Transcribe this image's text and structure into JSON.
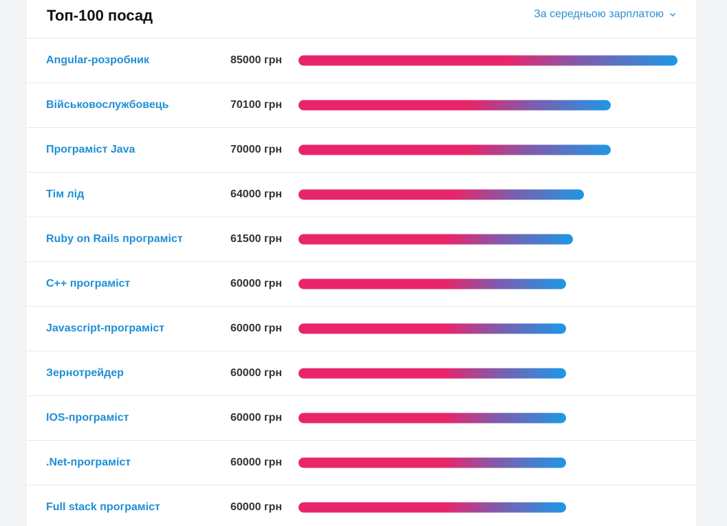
{
  "header": {
    "title": "Топ-100 посад",
    "sort_label": "За середньою зарплатою"
  },
  "max_salary": 85000,
  "rows": [
    {
      "job": "Angular-розробник",
      "salary": 85000,
      "salary_text": "85000 грн"
    },
    {
      "job": "Військовослужбовець",
      "salary": 70100,
      "salary_text": "70100 грн"
    },
    {
      "job": "Програміст Java",
      "salary": 70000,
      "salary_text": "70000 грн"
    },
    {
      "job": "Тім лід",
      "salary": 64000,
      "salary_text": "64000 грн"
    },
    {
      "job": "Ruby on Rails програміст",
      "salary": 61500,
      "salary_text": "61500 грн"
    },
    {
      "job": "C++ програміст",
      "salary": 60000,
      "salary_text": "60000 грн"
    },
    {
      "job": "Javascript-програміст",
      "salary": 60000,
      "salary_text": "60000 грн"
    },
    {
      "job": "Зернотрейдер",
      "salary": 60000,
      "salary_text": "60000 грн"
    },
    {
      "job": "IOS-програміст",
      "salary": 60000,
      "salary_text": "60000 грн"
    },
    {
      "job": ".Net-програміст",
      "salary": 60000,
      "salary_text": "60000 грн"
    },
    {
      "job": "Full stack програміст",
      "salary": 60000,
      "salary_text": "60000 грн"
    }
  ],
  "colors": {
    "link": "#1f8fd4",
    "bar_start": "#e8256b",
    "bar_end": "#1d98e6"
  }
}
